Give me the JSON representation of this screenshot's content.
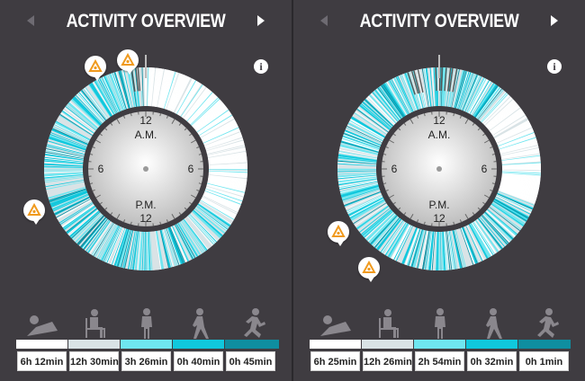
{
  "panels": [
    {
      "title": "ACTIVITY OVERVIEW",
      "info_label": "i",
      "clock": {
        "top": "12",
        "am": "A.M.",
        "left": "6",
        "right": "6",
        "pm": "P.M.",
        "bottom": "12"
      },
      "durations": [
        "6h 12min",
        "12h 30min",
        "3h 26min",
        "0h 40min",
        "0h 45min"
      ]
    },
    {
      "title": "ACTIVITY OVERVIEW",
      "info_label": "i",
      "clock": {
        "top": "12",
        "am": "A.M.",
        "left": "6",
        "right": "6",
        "pm": "P.M.",
        "bottom": "12"
      },
      "durations": [
        "6h 25min",
        "12h 26min",
        "2h 54min",
        "0h 32min",
        "0h 1min"
      ]
    }
  ],
  "activity_levels": [
    "lying-icon",
    "sitting-icon",
    "standing-icon",
    "walking-icon",
    "running-icon"
  ],
  "colors": {
    "background": "#3f3c41",
    "lying": "#ffffff",
    "sitting": "#d9e3e6",
    "standing": "#6fe6f0",
    "walking": "#10c8dd",
    "running": "#0f8ea0",
    "alert": "#f09a1e"
  }
}
